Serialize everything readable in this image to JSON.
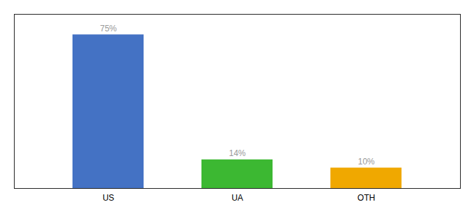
{
  "chart_data": {
    "type": "bar",
    "categories": [
      "US",
      "UA",
      "OTH"
    ],
    "values": [
      75,
      14,
      10
    ],
    "value_labels": [
      "75%",
      "14%",
      "10%"
    ],
    "colors": [
      "#4472c4",
      "#3cb832",
      "#f0a800"
    ],
    "ylim": [
      0,
      85
    ],
    "data_labels": true,
    "tick_labels": "x",
    "grid": false
  }
}
